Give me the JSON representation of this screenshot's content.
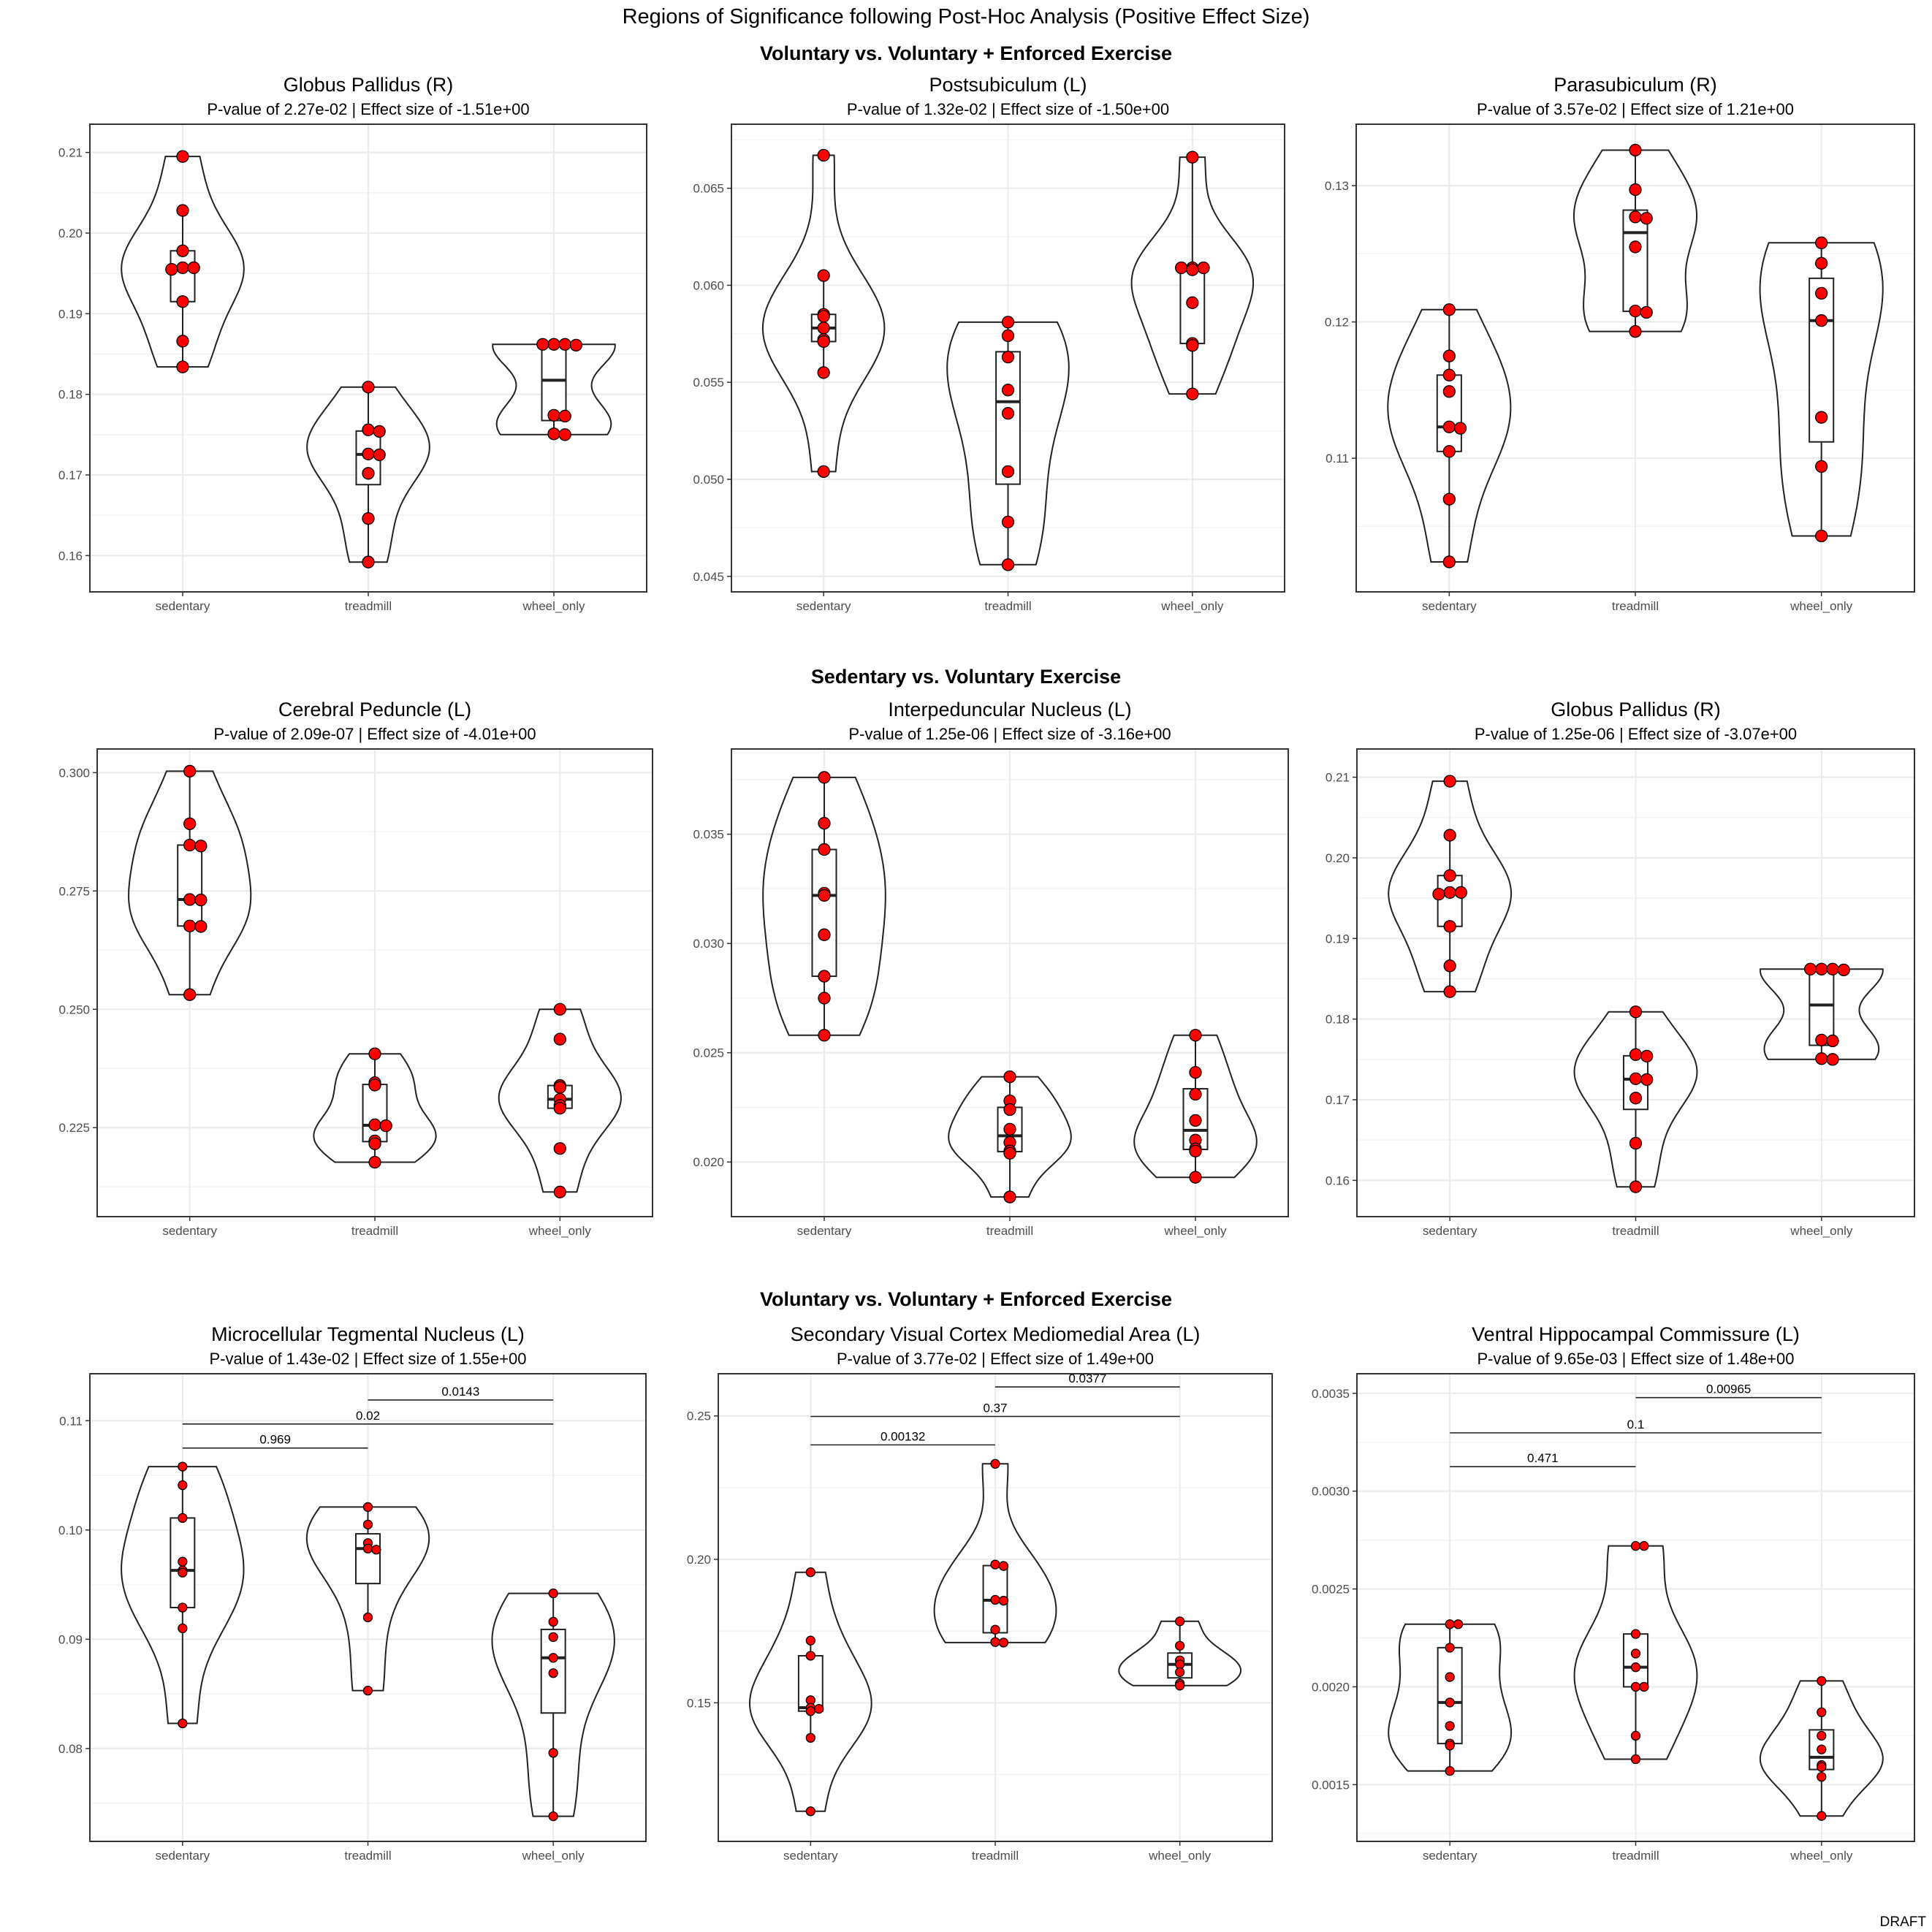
{
  "figure": {
    "title": "Regions of Significance following Post-Hoc Analysis (Positive Effect Size)",
    "footer": "DRAFT",
    "row_titles": [
      "Voluntary vs. Voluntary + Enforced Exercise",
      "Sedentary vs. Voluntary Exercise",
      "Voluntary vs. Voluntary + Enforced Exercise"
    ],
    "colors": {
      "point_fill": "#ff0000",
      "panel_border": "#333333",
      "grid": "#ebebeb"
    }
  },
  "chart_data": [
    {
      "type": "violin",
      "title": "Globus Pallidus (R)",
      "subtitle": "P-value of  2.27e-02  | Effect size of  -1.51e+00",
      "categories": [
        "sedentary",
        "treadmill",
        "wheel_only"
      ],
      "ylim": [
        0.1555,
        0.2135
      ],
      "yticks": [
        0.16,
        0.17,
        0.18,
        0.19,
        0.2,
        0.21
      ],
      "ytick_labels": [
        "0.16",
        "0.17",
        "0.18",
        "0.19",
        "0.20",
        "0.21"
      ],
      "series": [
        {
          "points": [
            0.2095,
            0.2028,
            0.1978,
            0.1957,
            0.1957,
            0.1955,
            0.1915,
            0.1866,
            0.1834
          ]
        },
        {
          "points": [
            0.1809,
            0.1756,
            0.1754,
            0.1726,
            0.1725,
            0.1702,
            0.1646,
            0.1592
          ]
        },
        {
          "points": [
            0.1862,
            0.1862,
            0.1862,
            0.1861,
            0.1774,
            0.1773,
            0.1751,
            0.175
          ]
        }
      ],
      "annotations": []
    },
    {
      "type": "violin",
      "title": "Postsubiculum (L)",
      "subtitle": "P-value of  1.32e-02  | Effect size of  -1.50e+00",
      "categories": [
        "sedentary",
        "treadmill",
        "wheel_only"
      ],
      "ylim": [
        0.0442,
        0.0683
      ],
      "yticks": [
        0.045,
        0.05,
        0.055,
        0.06,
        0.065
      ],
      "ytick_labels": [
        "0.045",
        "0.050",
        "0.055",
        "0.060",
        "0.065"
      ],
      "series": [
        {
          "points": [
            0.0667,
            0.0605,
            0.0585,
            0.0584,
            0.0578,
            0.0572,
            0.0571,
            0.0555,
            0.0504
          ]
        },
        {
          "points": [
            0.0581,
            0.0574,
            0.0563,
            0.0546,
            0.0534,
            0.0504,
            0.0478,
            0.0456
          ]
        },
        {
          "points": [
            0.0666,
            0.0609,
            0.0609,
            0.0609,
            0.0608,
            0.0591,
            0.057,
            0.0569,
            0.0544
          ]
        }
      ],
      "annotations": []
    },
    {
      "type": "violin",
      "title": "Parasubiculum (R)",
      "subtitle": "P-value of  3.57e-02  | Effect size of  1.21e+00",
      "categories": [
        "sedentary",
        "treadmill",
        "wheel_only"
      ],
      "ylim": [
        0.1002,
        0.1345
      ],
      "yticks": [
        0.11,
        0.12,
        0.13
      ],
      "ytick_labels": [
        "0.11",
        "0.12",
        "0.13"
      ],
      "series": [
        {
          "points": [
            0.1209,
            0.1175,
            0.1161,
            0.1149,
            0.1123,
            0.1122,
            0.1105,
            0.107,
            0.1024
          ]
        },
        {
          "points": [
            0.1326,
            0.1297,
            0.1277,
            0.1276,
            0.1255,
            0.1208,
            0.1207,
            0.1193
          ]
        },
        {
          "points": [
            0.1258,
            0.1243,
            0.1221,
            0.1201,
            0.113,
            0.1094,
            0.1043
          ]
        }
      ],
      "annotations": []
    },
    {
      "type": "violin",
      "title": "Cerebral Peduncle (L)",
      "subtitle": "P-value of  2.09e-07  | Effect size of  -4.01e+00",
      "categories": [
        "sedentary",
        "treadmill",
        "wheel_only"
      ],
      "ylim": [
        0.2062,
        0.305
      ],
      "yticks": [
        0.225,
        0.25,
        0.275,
        0.3
      ],
      "ytick_labels": [
        "0.225",
        "0.250",
        "0.275",
        "0.300"
      ],
      "series": [
        {
          "points": [
            0.3003,
            0.2892,
            0.2847,
            0.2845,
            0.2732,
            0.2731,
            0.2676,
            0.2675,
            0.2531
          ]
        },
        {
          "points": [
            0.2406,
            0.2345,
            0.234,
            0.2256,
            0.2254,
            0.2222,
            0.2216,
            0.2177
          ]
        },
        {
          "points": [
            0.25,
            0.2437,
            0.2339,
            0.2335,
            0.231,
            0.2297,
            0.2291,
            0.2206,
            0.2114
          ]
        }
      ],
      "annotations": []
    },
    {
      "type": "violin",
      "title": "Interpeduncular Nucleus (L)",
      "subtitle": "P-value of  1.25e-06  | Effect size of  -3.16e+00",
      "categories": [
        "sedentary",
        "treadmill",
        "wheel_only"
      ],
      "ylim": [
        0.0175,
        0.0389
      ],
      "yticks": [
        0.02,
        0.025,
        0.03,
        0.035
      ],
      "ytick_labels": [
        "0.020",
        "0.025",
        "0.030",
        "0.035"
      ],
      "series": [
        {
          "points": [
            0.0376,
            0.0355,
            0.0343,
            0.0323,
            0.0322,
            0.0304,
            0.0285,
            0.0275,
            0.0258
          ]
        },
        {
          "points": [
            0.0239,
            0.0228,
            0.0224,
            0.0215,
            0.0209,
            0.0205,
            0.0204,
            0.0184
          ]
        },
        {
          "points": [
            0.0258,
            0.0241,
            0.0231,
            0.0219,
            0.021,
            0.0206,
            0.0205,
            0.0193
          ]
        }
      ],
      "annotations": []
    },
    {
      "type": "violin",
      "title": "Globus Pallidus (R)",
      "subtitle": "P-value of  1.25e-06  | Effect size of  -3.07e+00",
      "categories": [
        "sedentary",
        "treadmill",
        "wheel_only"
      ],
      "ylim": [
        0.1555,
        0.2135
      ],
      "yticks": [
        0.16,
        0.17,
        0.18,
        0.19,
        0.2,
        0.21
      ],
      "ytick_labels": [
        "0.16",
        "0.17",
        "0.18",
        "0.19",
        "0.20",
        "0.21"
      ],
      "series": [
        {
          "points": [
            0.2095,
            0.2028,
            0.1978,
            0.1957,
            0.1957,
            0.1955,
            0.1915,
            0.1866,
            0.1834
          ]
        },
        {
          "points": [
            0.1809,
            0.1756,
            0.1754,
            0.1726,
            0.1725,
            0.1702,
            0.1646,
            0.1592
          ]
        },
        {
          "points": [
            0.1862,
            0.1862,
            0.1862,
            0.1861,
            0.1774,
            0.1773,
            0.1751,
            0.175
          ]
        }
      ],
      "annotations": []
    },
    {
      "type": "violin",
      "title": "Microcellular Tegmental Nucleus (L)",
      "subtitle": "P-value of  1.43e-02  | Effect size of  1.55e+00",
      "categories": [
        "sedentary",
        "treadmill",
        "wheel_only"
      ],
      "ylim": [
        0.0715,
        0.1143
      ],
      "yticks": [
        0.08,
        0.09,
        0.1,
        0.11
      ],
      "ytick_labels": [
        "0.08",
        "0.09",
        "0.10",
        "0.11"
      ],
      "series": [
        {
          "points": [
            0.1058,
            0.1041,
            0.1011,
            0.0971,
            0.0963,
            0.0961,
            0.0929,
            0.091,
            0.0823
          ]
        },
        {
          "points": [
            0.1021,
            0.1005,
            0.0988,
            0.0983,
            0.0982,
            0.092,
            0.0853
          ]
        },
        {
          "points": [
            0.0942,
            0.0916,
            0.0902,
            0.0883,
            0.0869,
            0.0796,
            0.0738
          ]
        }
      ],
      "annotations": [
        {
          "from": 1,
          "to": 2,
          "y": 0.1119,
          "label": "0.0143"
        },
        {
          "from": 0,
          "to": 2,
          "y": 0.1097,
          "label": "0.02"
        },
        {
          "from": 0,
          "to": 1,
          "y": 0.1075,
          "label": "0.969"
        }
      ]
    },
    {
      "type": "violin",
      "title": "Secondary Visual Cortex Mediomedial Area (L)",
      "subtitle": "P-value of  3.77e-02  | Effect size of  1.49e+00",
      "categories": [
        "sedentary",
        "treadmill",
        "wheel_only"
      ],
      "ylim": [
        0.1017,
        0.2647
      ],
      "yticks": [
        0.15,
        0.2,
        0.25
      ],
      "ytick_labels": [
        "0.15",
        "0.20",
        "0.25"
      ],
      "series": [
        {
          "points": [
            0.1955,
            0.1717,
            0.1664,
            0.1509,
            0.1483,
            0.1479,
            0.1471,
            0.1378,
            0.1122
          ]
        },
        {
          "points": [
            0.2333,
            0.1982,
            0.1977,
            0.1859,
            0.1856,
            0.1755,
            0.1712,
            0.171
          ]
        },
        {
          "points": [
            0.1784,
            0.1699,
            0.1648,
            0.1634,
            0.1607,
            0.1567,
            0.156
          ]
        }
      ],
      "annotations": [
        {
          "from": 1,
          "to": 2,
          "y": 0.2601,
          "label": "0.0377"
        },
        {
          "from": 0,
          "to": 2,
          "y": 0.2498,
          "label": "0.37"
        },
        {
          "from": 0,
          "to": 1,
          "y": 0.2399,
          "label": "0.00132"
        }
      ]
    },
    {
      "type": "violin",
      "title": "Ventral Hippocampal Commissure (L)",
      "subtitle": "P-value of  9.65e-03  | Effect size of  1.48e+00",
      "categories": [
        "sedentary",
        "treadmill",
        "wheel_only"
      ],
      "ylim": [
        0.00121,
        0.0036
      ],
      "yticks": [
        0.0015,
        0.002,
        0.0025,
        0.003,
        0.0035
      ],
      "ytick_labels": [
        "0.0015",
        "0.0020",
        "0.0025",
        "0.0030",
        "0.0035"
      ],
      "series": [
        {
          "points": [
            0.00232,
            0.00232,
            0.0022,
            0.00205,
            0.00192,
            0.0018,
            0.00171,
            0.0017,
            0.00157
          ]
        },
        {
          "points": [
            0.00272,
            0.00272,
            0.00227,
            0.00217,
            0.0021,
            0.002,
            0.002,
            0.00175,
            0.00163
          ]
        },
        {
          "points": [
            0.00203,
            0.00187,
            0.00175,
            0.00168,
            0.0016,
            0.00159,
            0.00154,
            0.00134
          ]
        }
      ],
      "annotations": [
        {
          "from": 1,
          "to": 2,
          "y": 0.003478,
          "label": "0.00965"
        },
        {
          "from": 0,
          "to": 2,
          "y": 0.003298,
          "label": "0.1"
        },
        {
          "from": 0,
          "to": 1,
          "y": 0.003125,
          "label": "0.471"
        }
      ]
    }
  ]
}
